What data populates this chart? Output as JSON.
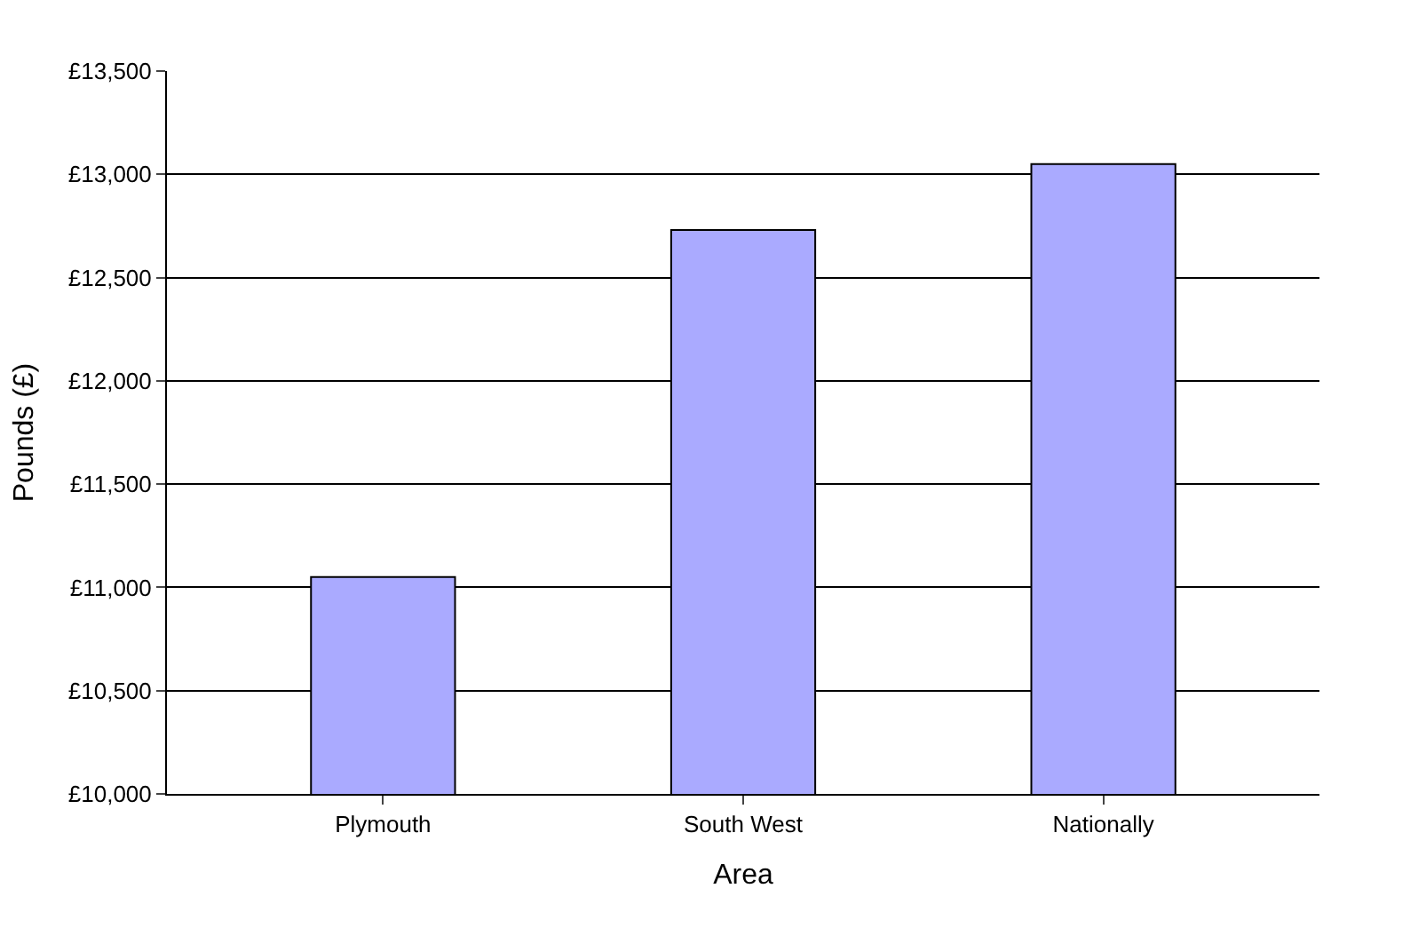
{
  "chart_data": {
    "type": "bar",
    "xlabel": "Area",
    "ylabel": "Pounds (£)",
    "categories": [
      "Plymouth",
      "South West",
      "Nationally"
    ],
    "values": [
      11050,
      12730,
      13050
    ],
    "color": "#aaaaff",
    "ylim": [
      10000,
      13500
    ],
    "yticks": [
      {
        "value": 10000,
        "label": "£10,000"
      },
      {
        "value": 10500,
        "label": "£10,500"
      },
      {
        "value": 11000,
        "label": "£11,000"
      },
      {
        "value": 11500,
        "label": "£11,500"
      },
      {
        "value": 12000,
        "label": "£12,000"
      },
      {
        "value": 12500,
        "label": "£12,500"
      },
      {
        "value": 13000,
        "label": "£13,000"
      },
      {
        "value": 13500,
        "label": "£13,500"
      }
    ],
    "grid": "y"
  }
}
